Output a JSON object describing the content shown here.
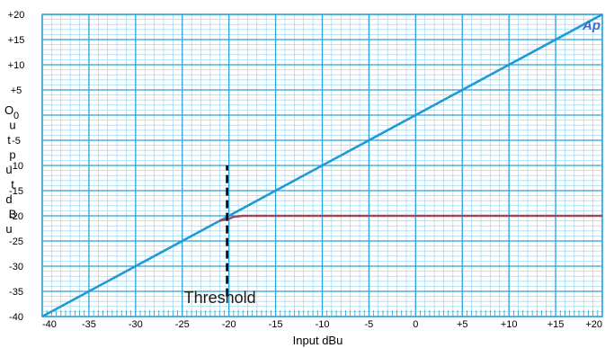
{
  "chart_data": {
    "type": "line",
    "xlabel": "Input dBu",
    "ylabel": "Output dBu",
    "xlim": [
      -40,
      20
    ],
    "ylim": [
      -40,
      20
    ],
    "x_ticks": [
      -40,
      -35,
      -30,
      -25,
      -20,
      -15,
      -10,
      -5,
      0,
      5,
      10,
      15,
      20
    ],
    "y_ticks": [
      -40,
      -35,
      -30,
      -25,
      -20,
      -15,
      -10,
      -5,
      0,
      5,
      10,
      15,
      20
    ],
    "x_tick_labels": [
      "-40",
      "-35",
      "-30",
      "-25",
      "-20",
      "-15",
      "-10",
      "-5",
      "0",
      "+5",
      "+10",
      "+15",
      "+20"
    ],
    "y_tick_labels": [
      "-40",
      "-35",
      "-30",
      "-25",
      "-20",
      "-15",
      "-10",
      "-5",
      "0",
      "+5",
      "+10",
      "+15",
      "+20"
    ],
    "grid": true,
    "minor_grid": true,
    "series": [
      {
        "color": "#1f9ad6",
        "x": [
          -40,
          20
        ],
        "y": [
          -40,
          20
        ]
      },
      {
        "color": "#9c4a5a",
        "x": [
          -21,
          -20,
          -19.5,
          -18.5,
          20
        ],
        "y": [
          -21,
          -20.6,
          -20.2,
          -20,
          -20
        ]
      }
    ],
    "annotations": [
      {
        "text": "Threshold",
        "x": -20.2,
        "line_y": [
          -36,
          -10
        ],
        "color": "#000000"
      }
    ],
    "logo_text": "Ap",
    "colors": {
      "grid": "#29a3dc",
      "minor_grid": "#8fd0ef"
    }
  }
}
